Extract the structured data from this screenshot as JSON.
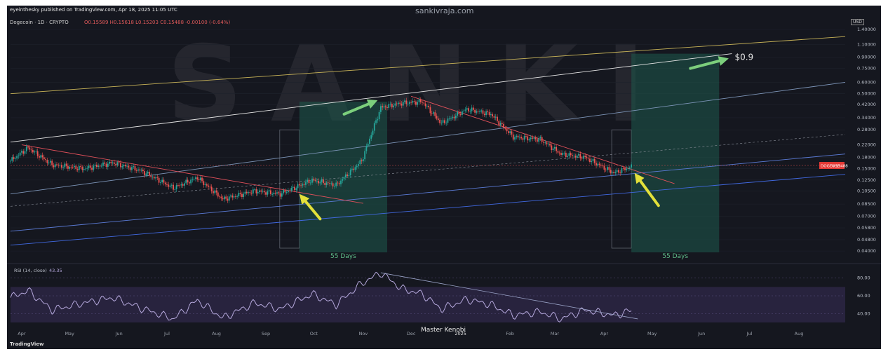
{
  "header": {
    "publisher": "eyeinthesky published on TradingView.com, Apr 18, 2025 11:05 UTC",
    "site": "sankivraja.com",
    "symbol_line": "Dogecoin · 1D · CRYPTO",
    "ohlc": "O0.15589 H0.15618 L0.15203 C0.15488 -0.00100 (-0.64%)",
    "currency": "USD"
  },
  "watermark": "SANKI",
  "footer": {
    "logo": "TradingView",
    "author": "Master Kenobi"
  },
  "colors": {
    "background": "#15171f",
    "up": "#26a69a",
    "down": "#ef5350",
    "rsi_line": "#b5a8dc",
    "rsi_band": "#3b2f5e",
    "projection": "#1e5a4c",
    "arrow_yellow": "#e3e03a",
    "arrow_green": "#7ccf7c",
    "price_tag": "#e53935"
  },
  "chart_data": [
    {
      "type": "candlestick",
      "title": "Dogecoin · 1D · CRYPTO",
      "price_scale": "log",
      "ylim": [
        0.035,
        1.5
      ],
      "y_ticks": [
        "1.40000",
        "1.10000",
        "0.90000",
        "0.75000",
        "0.60000",
        "0.50000",
        "0.42000",
        "0.34000",
        "0.28000",
        "0.22000",
        "0.18000",
        "0.15000",
        "0.12500",
        "0.10500",
        "0.08500",
        "0.07000",
        "0.05800",
        "0.04800",
        "0.04000"
      ],
      "y_tick_values": [
        1.4,
        1.1,
        0.9,
        0.75,
        0.6,
        0.5,
        0.42,
        0.34,
        0.28,
        0.22,
        0.18,
        0.15,
        0.125,
        0.105,
        0.085,
        0.07,
        0.058,
        0.048,
        0.04
      ],
      "x_tick_labels": [
        "Apr",
        "May",
        "Jun",
        "Jul",
        "Aug",
        "Sep",
        "Oct",
        "Nov",
        "Dec",
        "2025",
        "Feb",
        "Mar",
        "Apr",
        "May",
        "Jun",
        "Jul",
        "Aug"
      ],
      "x_tick_dates": [
        "2024-04-01",
        "2024-05-01",
        "2024-06-01",
        "2024-07-01",
        "2024-08-01",
        "2024-09-01",
        "2024-10-01",
        "2024-11-01",
        "2024-12-01",
        "2025-01-01",
        "2025-02-01",
        "2025-03-01",
        "2025-04-01",
        "2025-05-01",
        "2025-06-01",
        "2025-07-01",
        "2025-08-01"
      ],
      "price_path": [
        {
          "date": "2024-03-25",
          "close": 0.17
        },
        {
          "date": "2024-04-05",
          "close": 0.21
        },
        {
          "date": "2024-04-20",
          "close": 0.16
        },
        {
          "date": "2024-05-10",
          "close": 0.15
        },
        {
          "date": "2024-05-28",
          "close": 0.165
        },
        {
          "date": "2024-06-15",
          "close": 0.145
        },
        {
          "date": "2024-07-05",
          "close": 0.11
        },
        {
          "date": "2024-07-20",
          "close": 0.13
        },
        {
          "date": "2024-08-05",
          "close": 0.092
        },
        {
          "date": "2024-08-25",
          "close": 0.105
        },
        {
          "date": "2024-09-10",
          "close": 0.1
        },
        {
          "date": "2024-09-30",
          "close": 0.125
        },
        {
          "date": "2024-10-15",
          "close": 0.115
        },
        {
          "date": "2024-10-31",
          "close": 0.17
        },
        {
          "date": "2024-11-12",
          "close": 0.4
        },
        {
          "date": "2024-11-25",
          "close": 0.43
        },
        {
          "date": "2024-12-08",
          "close": 0.44
        },
        {
          "date": "2024-12-20",
          "close": 0.31
        },
        {
          "date": "2025-01-05",
          "close": 0.39
        },
        {
          "date": "2025-01-20",
          "close": 0.36
        },
        {
          "date": "2025-02-03",
          "close": 0.25
        },
        {
          "date": "2025-02-20",
          "close": 0.24
        },
        {
          "date": "2025-03-05",
          "close": 0.19
        },
        {
          "date": "2025-03-20",
          "close": 0.18
        },
        {
          "date": "2025-04-07",
          "close": 0.14
        },
        {
          "date": "2025-04-18",
          "close": 0.15488
        }
      ],
      "current_price": {
        "label": "DOGEUSD",
        "value": "0.15488"
      },
      "target": {
        "label": "$0.9",
        "value": 0.9
      },
      "projection_boxes": [
        {
          "start": "2024-09-22",
          "end": "2024-11-16",
          "label": "55 Days"
        },
        {
          "start": "2025-04-18",
          "end": "2025-06-12",
          "label": "55 Days"
        }
      ],
      "trendlines": [
        {
          "color": "#c9b458",
          "from": {
            "date": "2024-03-25",
            "price": 0.5
          },
          "to": {
            "date": "2025-08-30",
            "price": 1.25
          }
        },
        {
          "color": "#e6e6e6",
          "from": {
            "date": "2024-03-25",
            "price": 0.23
          },
          "to": {
            "date": "2025-06-20",
            "price": 0.95
          }
        },
        {
          "color": "#7d95b8",
          "from": {
            "date": "2024-03-25",
            "price": 0.1
          },
          "to": {
            "date": "2025-08-30",
            "price": 0.6
          }
        },
        {
          "color": "#5b7bd6",
          "from": {
            "date": "2024-03-25",
            "price": 0.055
          },
          "to": {
            "date": "2025-08-30",
            "price": 0.19
          }
        },
        {
          "color": "#4169e1",
          "from": {
            "date": "2024-03-25",
            "price": 0.044
          },
          "to": {
            "date": "2025-08-30",
            "price": 0.137
          }
        },
        {
          "color": "#e0505a",
          "from": {
            "date": "2024-04-01",
            "price": 0.22
          },
          "to": {
            "date": "2024-11-01",
            "price": 0.086
          }
        },
        {
          "color": "#e0505a",
          "from": {
            "date": "2024-12-01",
            "price": 0.48
          },
          "to": {
            "date": "2025-05-15",
            "price": 0.118
          }
        }
      ],
      "arrows": [
        {
          "color": "#e3e03a",
          "from": {
            "date": "2024-10-05",
            "price": 0.067
          },
          "to": {
            "date": "2024-09-22",
            "price": 0.1
          }
        },
        {
          "color": "#e3e03a",
          "from": {
            "date": "2025-05-05",
            "price": 0.083
          },
          "to": {
            "date": "2025-04-20",
            "price": 0.14
          }
        },
        {
          "color": "#7ccf7c",
          "from": {
            "date": "2024-10-20",
            "price": 0.36
          },
          "to": {
            "date": "2024-11-10",
            "price": 0.45
          }
        },
        {
          "color": "#7ccf7c",
          "from": {
            "date": "2025-05-25",
            "price": 0.75
          },
          "to": {
            "date": "2025-06-18",
            "price": 0.88
          }
        }
      ]
    },
    {
      "type": "line",
      "title": "RSI (14, close)",
      "value_label": "43.35",
      "current_value": 43.35,
      "ylim": [
        30,
        90
      ],
      "y_ticks": [
        "80.00",
        "60.00",
        "40.00"
      ],
      "y_tick_values": [
        80,
        60,
        40
      ],
      "band": [
        30,
        70
      ],
      "rsi_path": [
        {
          "date": "2024-03-25",
          "value": 58
        },
        {
          "date": "2024-04-05",
          "value": 66
        },
        {
          "date": "2024-04-20",
          "value": 44
        },
        {
          "date": "2024-05-10",
          "value": 52
        },
        {
          "date": "2024-05-28",
          "value": 58
        },
        {
          "date": "2024-06-15",
          "value": 46
        },
        {
          "date": "2024-07-05",
          "value": 34
        },
        {
          "date": "2024-07-20",
          "value": 55
        },
        {
          "date": "2024-08-05",
          "value": 35
        },
        {
          "date": "2024-08-25",
          "value": 52
        },
        {
          "date": "2024-09-10",
          "value": 45
        },
        {
          "date": "2024-09-30",
          "value": 62
        },
        {
          "date": "2024-10-15",
          "value": 50
        },
        {
          "date": "2024-10-31",
          "value": 74
        },
        {
          "date": "2024-11-12",
          "value": 86
        },
        {
          "date": "2024-11-25",
          "value": 68
        },
        {
          "date": "2024-12-08",
          "value": 62
        },
        {
          "date": "2024-12-20",
          "value": 45
        },
        {
          "date": "2025-01-05",
          "value": 56
        },
        {
          "date": "2025-01-20",
          "value": 50
        },
        {
          "date": "2025-02-03",
          "value": 38
        },
        {
          "date": "2025-02-20",
          "value": 42
        },
        {
          "date": "2025-03-05",
          "value": 34
        },
        {
          "date": "2025-03-20",
          "value": 44
        },
        {
          "date": "2025-04-07",
          "value": 38
        },
        {
          "date": "2025-04-18",
          "value": 43.35
        }
      ],
      "trendline": {
        "from": {
          "date": "2024-11-12",
          "value": 86
        },
        "to": {
          "date": "2025-04-22",
          "value": 34
        }
      }
    }
  ]
}
